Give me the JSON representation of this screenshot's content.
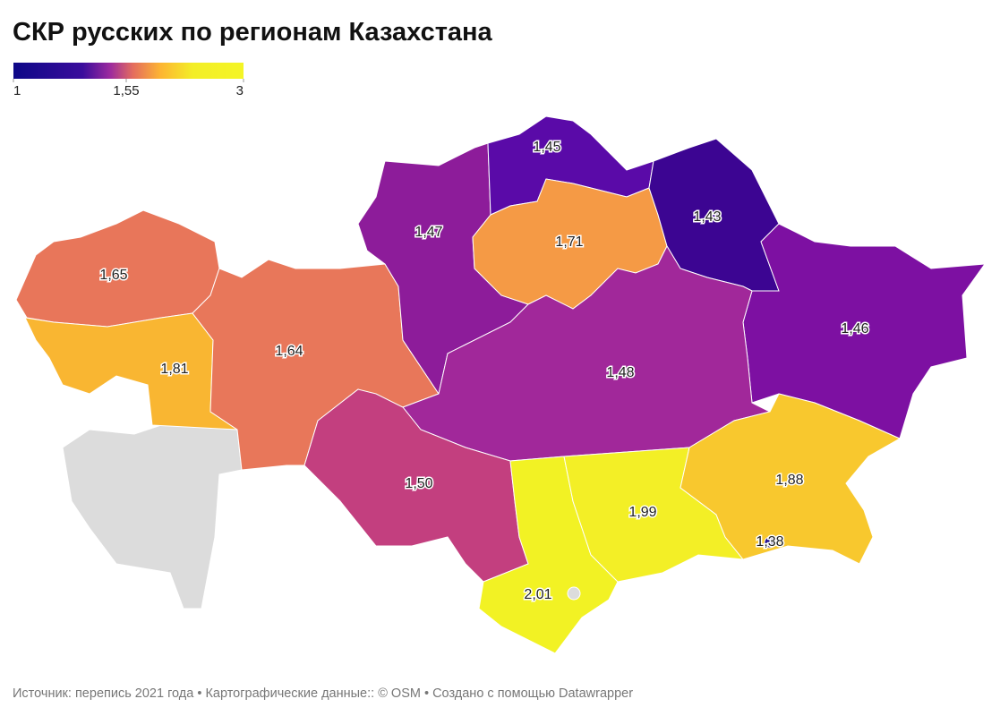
{
  "title": "СКР русских по регионам Казахстана",
  "legend": {
    "ticks": [
      1,
      {
        "value": 1.55,
        "label": "1,55"
      },
      3
    ]
  },
  "regions": [
    {
      "value": 1.65,
      "value_label": "1,65",
      "color": "#e8765a"
    },
    {
      "value": 1.81,
      "value_label": "1,81",
      "color": "#f9b632"
    },
    {
      "value": 1.64,
      "value_label": "1,64",
      "color": "#e8775a"
    },
    {
      "value": 1.47,
      "value_label": "1,47",
      "color": "#8d1c9a"
    },
    {
      "value": 1.45,
      "value_label": "1,45",
      "color": "#5a0aa8"
    },
    {
      "value": 1.71,
      "value_label": "1,71",
      "color": "#f59a45"
    },
    {
      "value": 1.43,
      "value_label": "1,43",
      "color": "#3c0592"
    },
    {
      "value": 1.46,
      "value_label": "1,46",
      "color": "#7d10a2"
    },
    {
      "value": 1.48,
      "value_label": "1,48",
      "color": "#a1289a"
    },
    {
      "value": 1.5,
      "value_label": "1,50",
      "color": "#c33f7f"
    },
    {
      "value": 2.01,
      "value_label": "2,01",
      "color": "#f2f224"
    },
    {
      "value": 1.99,
      "value_label": "1,99",
      "color": "#f3ef26"
    },
    {
      "value": 1.88,
      "value_label": "1,88",
      "color": "#f8c82e"
    },
    {
      "value": 1.38,
      "value_label": "1,38",
      "color": "#1e0b8e"
    }
  ],
  "source": "Источник: перепись 2021 года • Картографические данные:: © OSM  • Создано с помощью Datawrapper"
}
